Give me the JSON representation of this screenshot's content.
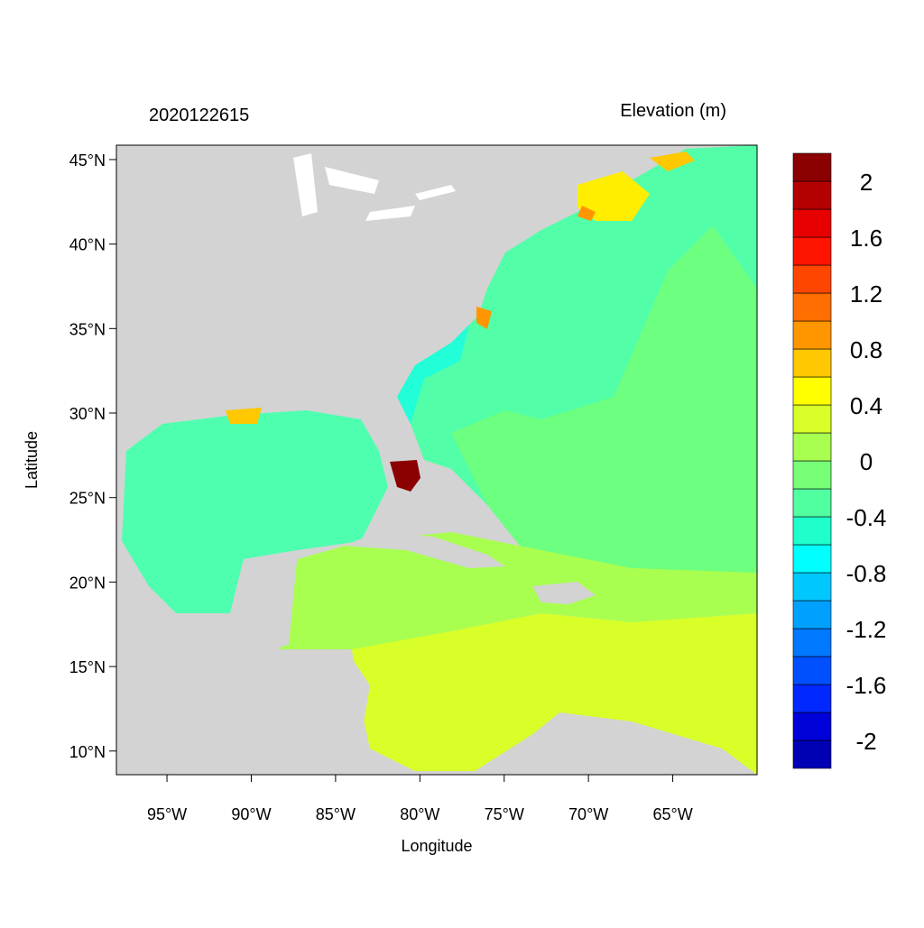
{
  "chart_data": {
    "type": "contour-map",
    "title": "2020122615",
    "colorbar_title": "Elevation (m)",
    "x_label": "Longitude",
    "y_label": "Latitude",
    "xlim": [
      -98,
      -60
    ],
    "ylim": [
      8.6,
      45.85
    ],
    "xticks": [
      {
        "value": -95,
        "label": "95°W"
      },
      {
        "value": -90,
        "label": "90°W"
      },
      {
        "value": -85,
        "label": "85°W"
      },
      {
        "value": -80,
        "label": "80°W"
      },
      {
        "value": -75,
        "label": "75°W"
      },
      {
        "value": -70,
        "label": "70°W"
      },
      {
        "value": -65,
        "label": "65°W"
      }
    ],
    "yticks": [
      {
        "value": 10,
        "label": "10°N"
      },
      {
        "value": 15,
        "label": "15°N"
      },
      {
        "value": 20,
        "label": "20°N"
      },
      {
        "value": 25,
        "label": "25°N"
      },
      {
        "value": 30,
        "label": "30°N"
      },
      {
        "value": 35,
        "label": "35°N"
      },
      {
        "value": 40,
        "label": "40°N"
      },
      {
        "value": 45,
        "label": "45°N"
      }
    ],
    "colorbar": {
      "levels": [
        -2.2,
        -2.0,
        -1.8,
        -1.6,
        -1.4,
        -1.2,
        -1.0,
        -0.8,
        -0.6,
        -0.4,
        -0.2,
        0,
        0.2,
        0.4,
        0.6,
        0.8,
        1.0,
        1.2,
        1.4,
        1.6,
        1.8,
        2.0,
        2.2
      ],
      "colors": [
        "#0000b4",
        "#0000d8",
        "#0028ff",
        "#0050ff",
        "#0078ff",
        "#00a0ff",
        "#00c8ff",
        "#00ffff",
        "#1effcc",
        "#50ffa0",
        "#78ff78",
        "#a8ff50",
        "#d8ff28",
        "#ffff00",
        "#ffc800",
        "#ff9600",
        "#ff6e00",
        "#ff4600",
        "#ff1400",
        "#e60000",
        "#b40000",
        "#8b0000"
      ],
      "ticks": [
        -2,
        -1.6,
        -1.2,
        -0.8,
        -0.4,
        0,
        0.4,
        0.8,
        1.2,
        1.6,
        2
      ]
    }
  }
}
